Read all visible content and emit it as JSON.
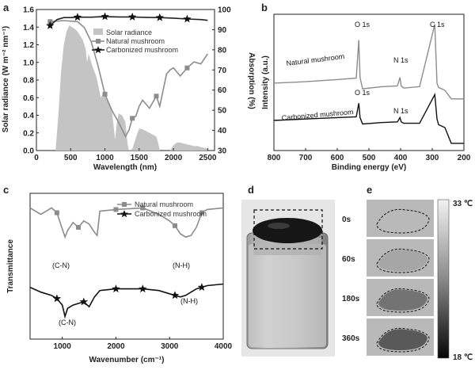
{
  "panels": {
    "a": "a",
    "b": "b",
    "c": "c",
    "d": "d",
    "e": "e"
  },
  "chart_data": [
    {
      "panel": "a",
      "type": "line",
      "xlabel": "Wavelength (nm)",
      "ylabel": "Solar radiance  (W m⁻² nm⁻¹)",
      "ylabel_right": "Absorption (%)",
      "xlim": [
        0,
        2600
      ],
      "ylim": [
        0,
        1.6
      ],
      "ylim_right": [
        30,
        100
      ],
      "xticks": [
        "0",
        "500",
        "1000",
        "1500",
        "2000",
        "2500"
      ],
      "yticks": [
        "0.0",
        "0.2",
        "0.4",
        "0.6",
        "0.8",
        "1.0",
        "1.2",
        "1.4",
        "1.6"
      ],
      "yticks_right": [
        "30",
        "40",
        "50",
        "60",
        "70",
        "80",
        "90",
        "100"
      ],
      "legend": [
        "Solar radiance",
        "Natural mushroom",
        "Carbonized mushroom"
      ],
      "series": [
        {
          "name": "Solar radiance",
          "axis": "left",
          "x": [
            280,
            320,
            360,
            400,
            440,
            480,
            520,
            560,
            600,
            640,
            680,
            720,
            740,
            760,
            780,
            820,
            870,
            900,
            940,
            980,
            1050,
            1100,
            1130,
            1150,
            1170,
            1200,
            1250,
            1300,
            1330,
            1350,
            1400,
            1450,
            1500,
            1550,
            1600,
            1650,
            1700,
            1750,
            1780,
            1800,
            1950,
            2000,
            2050,
            2100,
            2150,
            2200,
            2250,
            2300,
            2350,
            2400,
            2450,
            2500
          ],
          "values": [
            0.0,
            0.4,
            0.9,
            1.2,
            1.35,
            1.42,
            1.4,
            1.38,
            1.35,
            1.3,
            1.25,
            1.15,
            1.0,
            1.1,
            1.05,
            0.95,
            0.85,
            0.75,
            0.6,
            0.65,
            0.55,
            0.48,
            0.25,
            0.12,
            0.3,
            0.42,
            0.4,
            0.32,
            0.08,
            0.0,
            0.02,
            0.14,
            0.25,
            0.24,
            0.22,
            0.2,
            0.18,
            0.16,
            0.08,
            0.0,
            0.0,
            0.06,
            0.09,
            0.09,
            0.08,
            0.07,
            0.06,
            0.05,
            0.05,
            0.04,
            0.03,
            0.02
          ]
        },
        {
          "name": "Natural mushroom",
          "axis": "right",
          "x": [
            200,
            400,
            600,
            700,
            800,
            900,
            1000,
            1100,
            1200,
            1300,
            1350,
            1400,
            1450,
            1500,
            1550,
            1600,
            1650,
            1700,
            1750,
            1800,
            1850,
            1900,
            1950,
            2000,
            2100,
            2200,
            2300,
            2400,
            2500
          ],
          "values": [
            94,
            94.5,
            94,
            91,
            84,
            72,
            58,
            50,
            44,
            37,
            40,
            46,
            47,
            52,
            55,
            53,
            51,
            54,
            57,
            52,
            60,
            68,
            70,
            71,
            67,
            71,
            74,
            73,
            78
          ]
        },
        {
          "name": "Carbonized mushroom",
          "axis": "right",
          "x": [
            200,
            300,
            400,
            500,
            600,
            800,
            1000,
            1200,
            1400,
            1600,
            1800,
            2000,
            2200,
            2400,
            2500
          ],
          "values": [
            92,
            95,
            96,
            96,
            96.2,
            96.2,
            96.5,
            96.3,
            96.3,
            96.1,
            96,
            95.7,
            95.3,
            95,
            94.6
          ]
        }
      ]
    },
    {
      "panel": "b",
      "type": "line",
      "xlabel": "Binding energy (eV)",
      "ylabel": "Intensity (a.u.)",
      "xlim": [
        800,
        200
      ],
      "xticks": [
        "800",
        "700",
        "600",
        "500",
        "400",
        "300",
        "200"
      ],
      "annotations": [
        "O 1s",
        "N 1s",
        "C 1s",
        "O 1s",
        "N 1s"
      ],
      "series": [
        {
          "name": "Natural mushroom",
          "x": [
            800,
            700,
            600,
            540,
            532,
            528,
            520,
            460,
            410,
            402,
            398,
            390,
            340,
            292,
            285,
            280,
            260,
            240,
            220,
            200
          ],
          "values": [
            3.2,
            3.3,
            3.45,
            3.55,
            6.2,
            3.6,
            2.8,
            2.95,
            3.0,
            3.6,
            3.0,
            2.85,
            2.95,
            7.3,
            3.2,
            2.9,
            2.7,
            2.1,
            2.1,
            2.1
          ]
        },
        {
          "name": "Carbonized mushroom",
          "x": [
            800,
            700,
            600,
            540,
            532,
            528,
            520,
            460,
            410,
            402,
            398,
            390,
            340,
            292,
            285,
            280,
            260,
            240,
            220,
            200
          ],
          "values": [
            0.6,
            0.7,
            0.8,
            0.85,
            1.8,
            0.8,
            0.35,
            0.45,
            0.5,
            0.8,
            0.5,
            0.4,
            0.4,
            2.4,
            0.7,
            0.3,
            0.1,
            -1.0,
            -1.0,
            -1.0
          ]
        }
      ]
    },
    {
      "panel": "c",
      "type": "line",
      "xlabel": "Wavenumber  (cm⁻¹)",
      "ylabel": "Transmittance",
      "xlim": [
        400,
        4000
      ],
      "xticks": [
        "1000",
        "2000",
        "3000",
        "4000"
      ],
      "legend": [
        "Natural mushroom",
        "Carbonized mushroom"
      ],
      "annotations": [
        "(C-N)",
        "(N-H)",
        "(C-N)",
        "(N-H)"
      ],
      "series": [
        {
          "name": "Natural mushroom",
          "x": [
            400,
            600,
            800,
            900,
            1000,
            1050,
            1100,
            1200,
            1300,
            1400,
            1500,
            1600,
            1650,
            1700,
            2000,
            2500,
            2800,
            3000,
            3100,
            3200,
            3300,
            3400,
            3500,
            3600,
            3700,
            4000
          ],
          "values": [
            8.6,
            8.2,
            8.6,
            8.3,
            7.3,
            6.8,
            7.2,
            7.7,
            7.4,
            7.8,
            7.6,
            7.1,
            6.9,
            8.4,
            8.5,
            8.6,
            8.2,
            7.8,
            7.5,
            7.0,
            6.8,
            6.9,
            7.4,
            8.3,
            8.5,
            8.6
          ]
        },
        {
          "name": "Carbonized mushroom",
          "x": [
            400,
            600,
            800,
            900,
            1000,
            1050,
            1100,
            1200,
            1300,
            1400,
            1500,
            1600,
            1700,
            2000,
            2500,
            2800,
            3000,
            3100,
            3200,
            3300,
            3400,
            3500,
            3600,
            3700,
            4000
          ],
          "values": [
            3.7,
            3.4,
            3.2,
            3.0,
            2.6,
            1.9,
            2.4,
            2.6,
            2.7,
            2.8,
            2.5,
            3.1,
            3.5,
            3.6,
            3.6,
            3.5,
            3.3,
            3.2,
            3.1,
            3.2,
            3.4,
            3.6,
            3.7,
            3.8,
            3.9
          ]
        }
      ]
    }
  ],
  "thermal": {
    "times": [
      "0s",
      "60s",
      "180s",
      "360s"
    ],
    "intensity": [
      0.0,
      0.15,
      0.55,
      0.75
    ],
    "scale_max": "33 ℃",
    "scale_min": "18 ℃"
  }
}
